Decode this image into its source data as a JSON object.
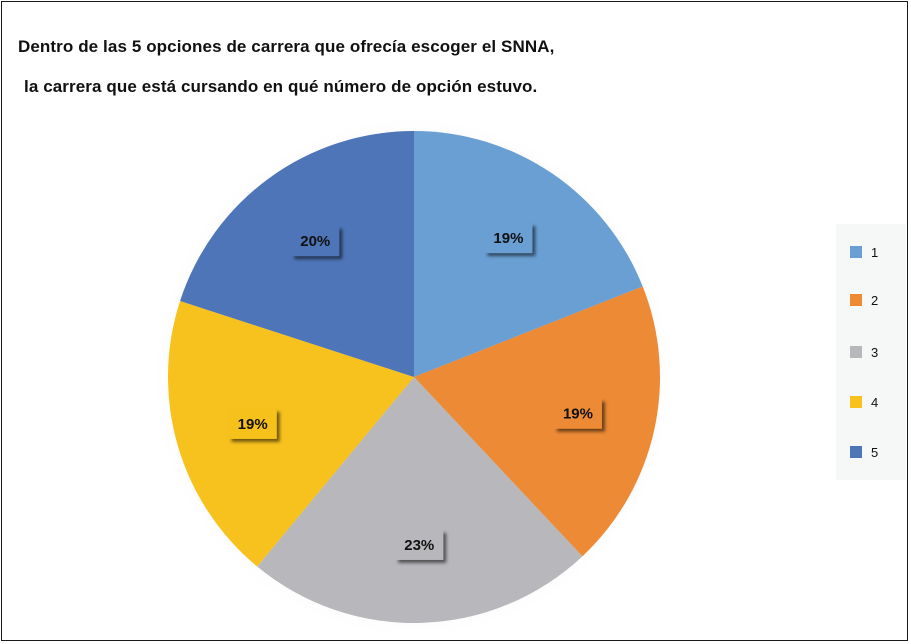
{
  "title_lines": [
    "Dentro de las 5 opciones de carrera que ofrecía escoger el SNNA,",
    "la carrera que está cursando en qué número de opción estuvo."
  ],
  "chart_data": {
    "type": "pie",
    "categories": [
      "1",
      "2",
      "3",
      "4",
      "5"
    ],
    "values": [
      19,
      19,
      23,
      19,
      20
    ],
    "data_labels": [
      "19%",
      "19%",
      "23%",
      "19%",
      "20%"
    ],
    "colors": [
      "#6a9fd4",
      "#ec8a35",
      "#b8b8bc",
      "#f7c11e",
      "#4d75b8"
    ],
    "start_angle": "12 o'clock",
    "direction": "clockwise",
    "legend_position": "right"
  }
}
